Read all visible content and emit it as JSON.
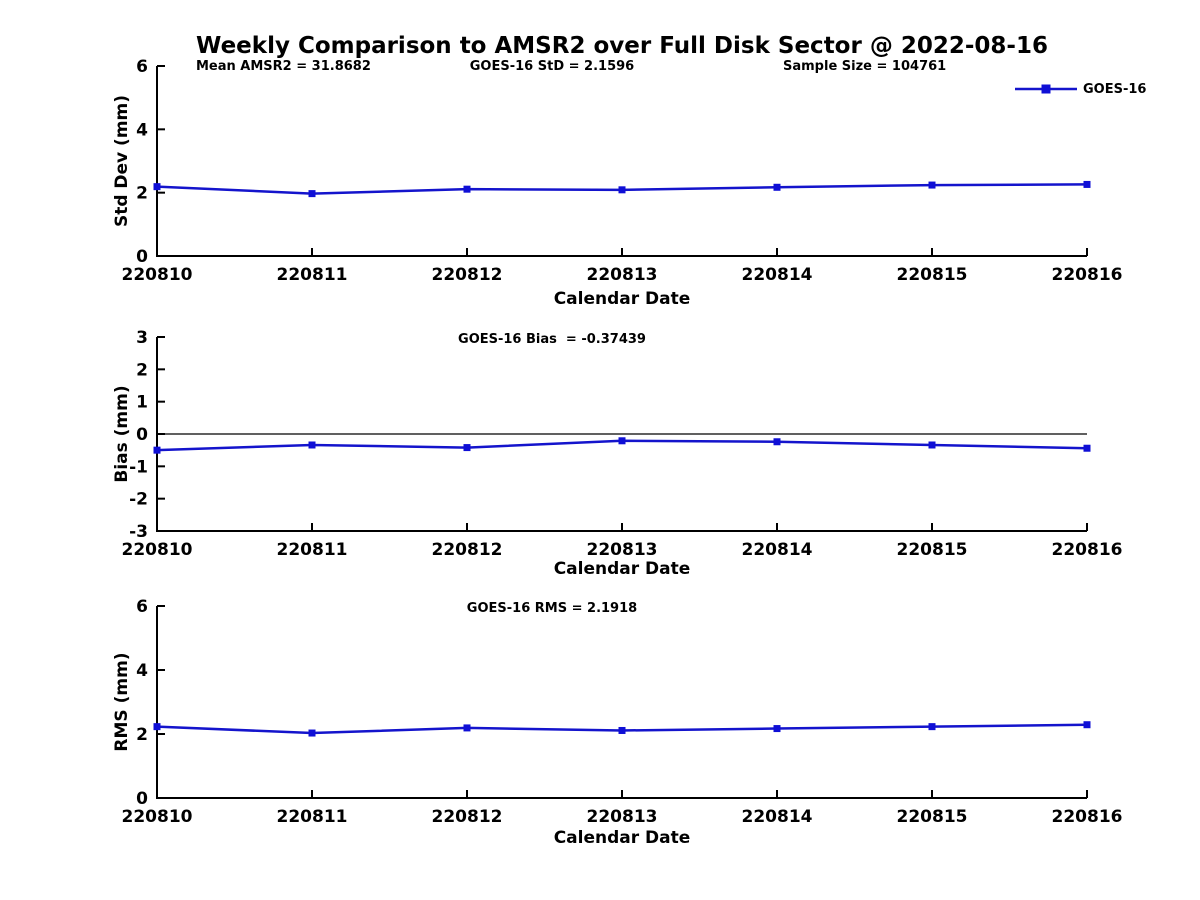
{
  "page": {
    "title": "Weekly Comparison to AMSR2 over Full Disk Sector @ 2022-08-16"
  },
  "legend": {
    "label": "GOES-16"
  },
  "colors": {
    "line": "#1414cc",
    "marker": "#0f0fd6",
    "axis": "#000000",
    "text": "#000000",
    "background": "#ffffff"
  },
  "chart_data": [
    {
      "type": "line",
      "x": [
        "220810",
        "220811",
        "220812",
        "220813",
        "220814",
        "220815",
        "220816"
      ],
      "series": [
        {
          "name": "GOES-16",
          "values": [
            2.19,
            1.97,
            2.11,
            2.09,
            2.17,
            2.24,
            2.26
          ]
        }
      ],
      "xlabel": "Calendar Date",
      "ylabel": "Std Dev (mm)",
      "ylim": [
        0,
        6
      ],
      "yticks": [
        0,
        2,
        4,
        6
      ],
      "grid": false,
      "zero_line": false,
      "marker": "square",
      "legend_position": "top-right",
      "annotations": [
        "Mean AMSR2 = 31.8682",
        "GOES-16 StD = 2.1596",
        "Sample Size = 104761"
      ]
    },
    {
      "type": "line",
      "x": [
        "220810",
        "220811",
        "220812",
        "220813",
        "220814",
        "220815",
        "220816"
      ],
      "series": [
        {
          "name": "GOES-16",
          "values": [
            -0.5,
            -0.34,
            -0.42,
            -0.21,
            -0.24,
            -0.34,
            -0.44
          ]
        }
      ],
      "xlabel": "Calendar Date",
      "ylabel": "Bias (mm)",
      "ylim": [
        -3,
        3
      ],
      "yticks": [
        -3,
        -2,
        -1,
        0,
        1,
        2,
        3
      ],
      "grid": false,
      "zero_line": true,
      "marker": "square",
      "annotations": [
        "GOES-16 Bias  = -0.37439"
      ]
    },
    {
      "type": "line",
      "x": [
        "220810",
        "220811",
        "220812",
        "220813",
        "220814",
        "220815",
        "220816"
      ],
      "series": [
        {
          "name": "GOES-16",
          "values": [
            2.23,
            2.03,
            2.19,
            2.11,
            2.17,
            2.23,
            2.29
          ]
        }
      ],
      "xlabel": "Calendar Date",
      "ylabel": "RMS (mm)",
      "ylim": [
        0,
        6
      ],
      "yticks": [
        0,
        2,
        4,
        6
      ],
      "grid": false,
      "zero_line": false,
      "marker": "square",
      "annotations": [
        "GOES-16 RMS = 2.1918"
      ]
    }
  ]
}
